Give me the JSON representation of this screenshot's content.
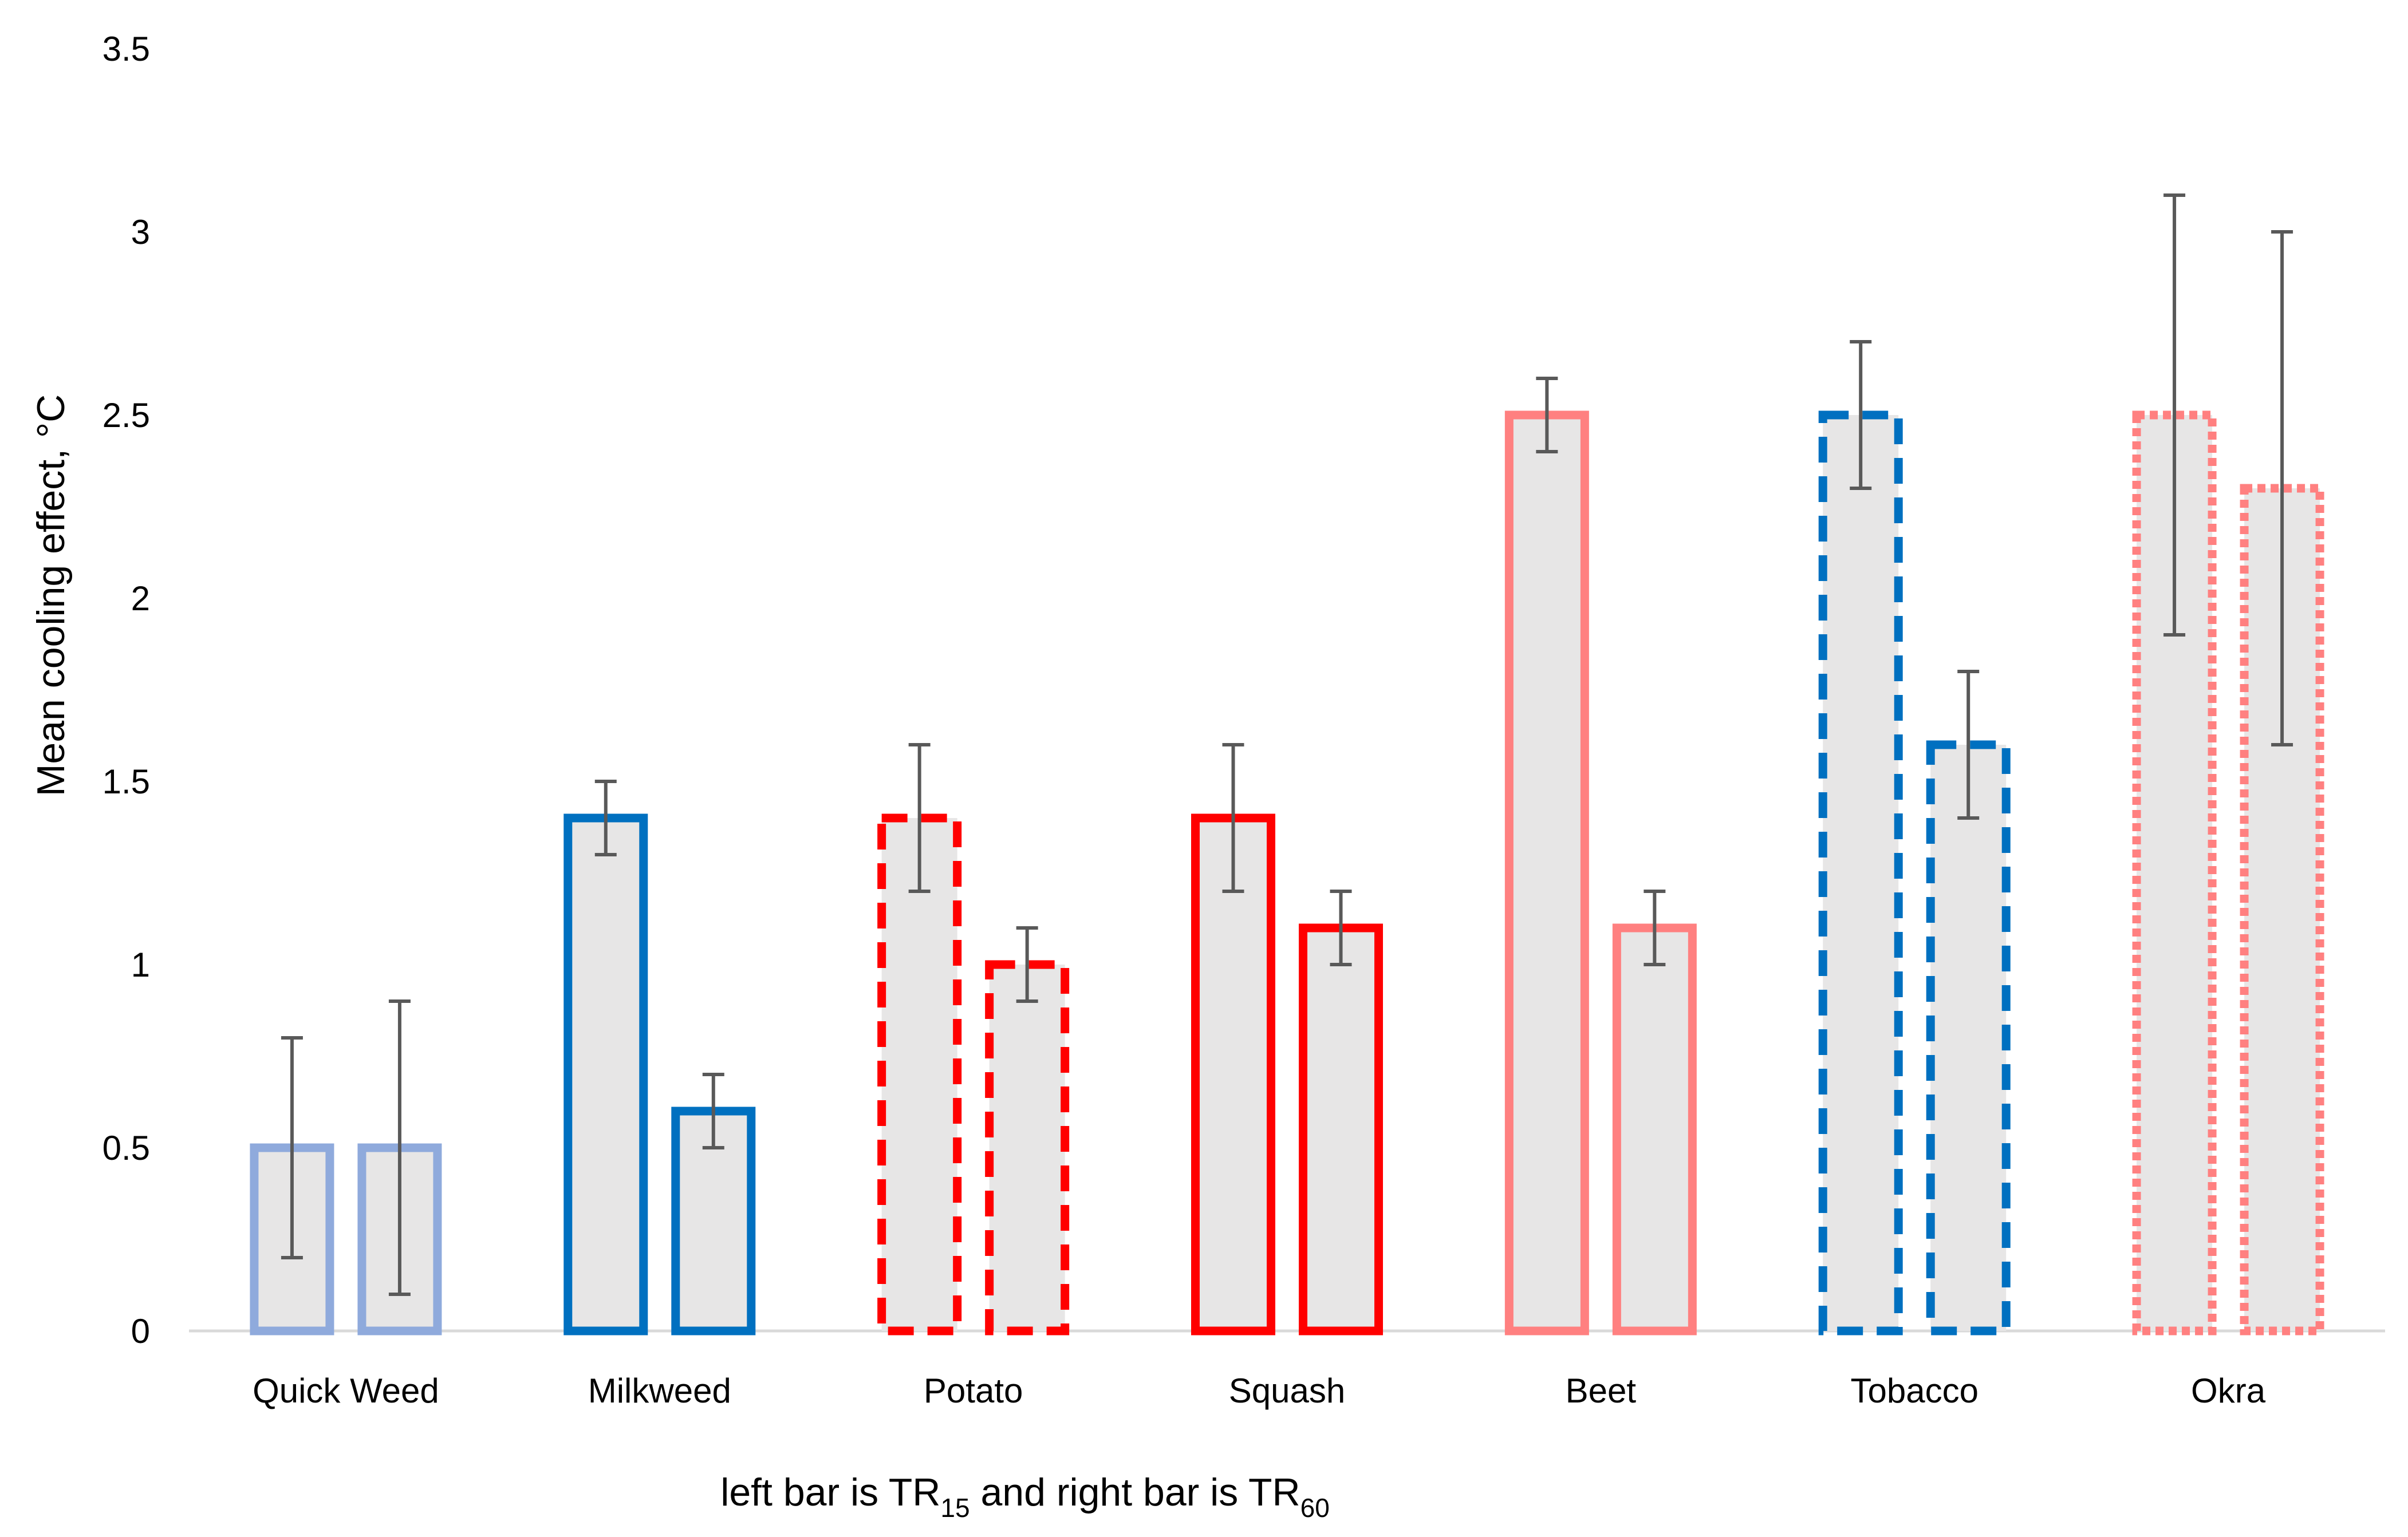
{
  "chart_data": {
    "type": "bar",
    "title": "",
    "ylabel": "Mean cooling effect, °C",
    "xlabel": {
      "text_a": "left bar is TR",
      "sub_a": "15",
      "text_b": " and right bar is TR",
      "sub_b": "60"
    },
    "ylim": [
      0,
      3.5
    ],
    "yticks": [
      "0",
      "0.5",
      "1",
      "1.5",
      "2",
      "2.5",
      "3",
      "3.5"
    ],
    "grid": false,
    "legend": "none",
    "categories": [
      "Quick Weed",
      "Milkweed",
      "Potato",
      "Squash",
      "Beet",
      "Tobacco",
      "Okra"
    ],
    "series": [
      {
        "name": "TR15",
        "values": [
          0.5,
          1.4,
          1.4,
          1.4,
          2.5,
          2.5,
          2.5
        ],
        "err_low": [
          0.2,
          1.3,
          1.2,
          1.2,
          2.4,
          2.3,
          1.9
        ],
        "err_high": [
          0.8,
          1.5,
          1.6,
          1.6,
          2.6,
          2.7,
          3.1
        ]
      },
      {
        "name": "TR60",
        "values": [
          0.5,
          0.6,
          1.0,
          1.1,
          1.1,
          1.6,
          2.3
        ],
        "err_low": [
          0.1,
          0.5,
          0.9,
          1.0,
          1.0,
          1.4,
          1.6
        ],
        "err_high": [
          0.9,
          0.7,
          1.1,
          1.2,
          1.2,
          1.8,
          3.0
        ]
      }
    ],
    "bar_styles": [
      {
        "color": "#8faadc",
        "dash": "solid"
      },
      {
        "color": "#0070c0",
        "dash": "solid"
      },
      {
        "color": "#ff0000",
        "dash": "dashed"
      },
      {
        "color": "#ff0000",
        "dash": "solid"
      },
      {
        "color": "#ff8080",
        "dash": "solid"
      },
      {
        "color": "#0070c0",
        "dash": "dashed"
      },
      {
        "color": "#ff8080",
        "dash": "dotted"
      }
    ],
    "bar_fill": "#e7e6e6",
    "error_bar_color": "#595959",
    "axis_color": "#d9d9d9"
  }
}
